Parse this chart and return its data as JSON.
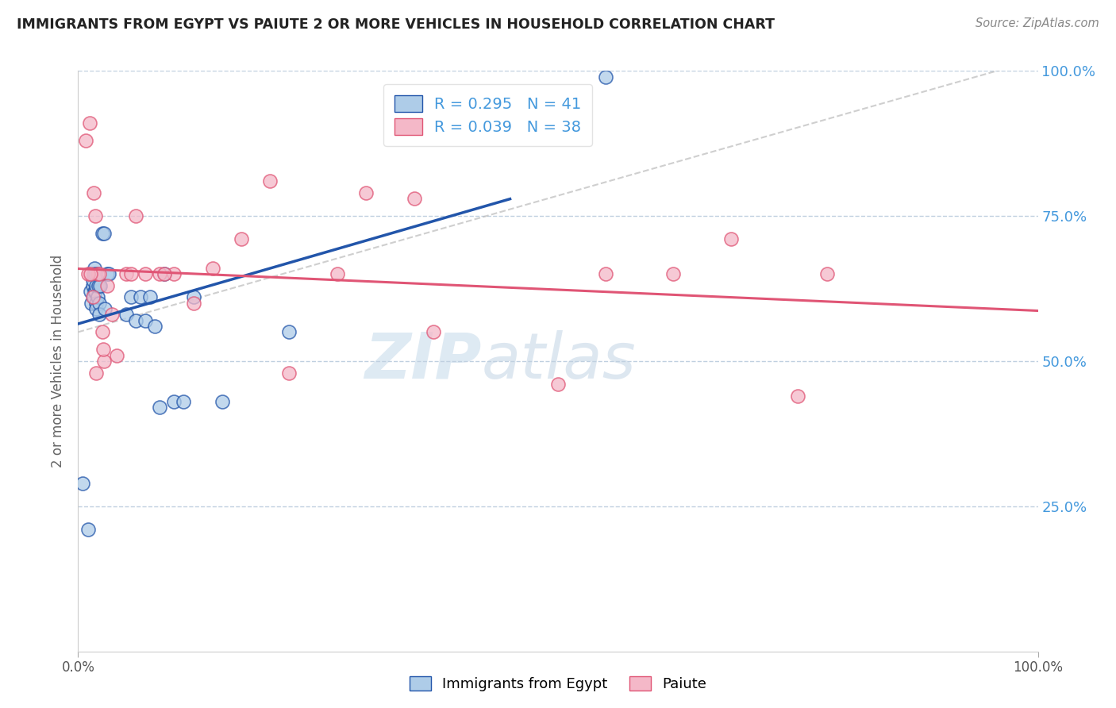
{
  "title": "IMMIGRANTS FROM EGYPT VS PAIUTE 2 OR MORE VEHICLES IN HOUSEHOLD CORRELATION CHART",
  "source": "Source: ZipAtlas.com",
  "ylabel": "2 or more Vehicles in Household",
  "xlim": [
    0.0,
    1.0
  ],
  "ylim": [
    0.0,
    1.0
  ],
  "blue_R": 0.295,
  "blue_N": 41,
  "pink_R": 0.039,
  "pink_N": 38,
  "blue_color": "#aecce8",
  "pink_color": "#f4b8c8",
  "blue_line_color": "#2255aa",
  "pink_line_color": "#e05575",
  "ref_line_color": "#bbbbbb",
  "legend_label_blue": "Immigrants from Egypt",
  "legend_label_pink": "Paiute",
  "title_color": "#222222",
  "source_color": "#888888",
  "watermark_zip": "ZIP",
  "watermark_atlas": "atlas",
  "background_color": "#ffffff",
  "grid_color": "#c0d0e0",
  "right_tick_color": "#4499dd",
  "blue_x": [
    0.005,
    0.01,
    0.013,
    0.014,
    0.015,
    0.015,
    0.016,
    0.016,
    0.017,
    0.017,
    0.018,
    0.018,
    0.019,
    0.019,
    0.019,
    0.02,
    0.02,
    0.021,
    0.022,
    0.022,
    0.023,
    0.025,
    0.027,
    0.028,
    0.03,
    0.032,
    0.05,
    0.055,
    0.06,
    0.065,
    0.07,
    0.075,
    0.08,
    0.085,
    0.09,
    0.1,
    0.11,
    0.12,
    0.15,
    0.22,
    0.55
  ],
  "blue_y": [
    0.29,
    0.21,
    0.62,
    0.6,
    0.63,
    0.64,
    0.65,
    0.61,
    0.66,
    0.62,
    0.65,
    0.62,
    0.63,
    0.6,
    0.59,
    0.61,
    0.65,
    0.63,
    0.6,
    0.58,
    0.63,
    0.72,
    0.72,
    0.59,
    0.65,
    0.65,
    0.58,
    0.61,
    0.57,
    0.61,
    0.57,
    0.61,
    0.56,
    0.42,
    0.65,
    0.43,
    0.43,
    0.61,
    0.43,
    0.55,
    0.99
  ],
  "pink_x": [
    0.008,
    0.012,
    0.016,
    0.018,
    0.02,
    0.022,
    0.025,
    0.027,
    0.03,
    0.035,
    0.04,
    0.05,
    0.055,
    0.06,
    0.07,
    0.085,
    0.1,
    0.12,
    0.14,
    0.17,
    0.2,
    0.22,
    0.27,
    0.3,
    0.35,
    0.37,
    0.5,
    0.55,
    0.62,
    0.68,
    0.75,
    0.78,
    0.01,
    0.013,
    0.015,
    0.019,
    0.026,
    0.09
  ],
  "pink_y": [
    0.88,
    0.91,
    0.79,
    0.75,
    0.65,
    0.65,
    0.55,
    0.5,
    0.63,
    0.58,
    0.51,
    0.65,
    0.65,
    0.75,
    0.65,
    0.65,
    0.65,
    0.6,
    0.66,
    0.71,
    0.81,
    0.48,
    0.65,
    0.79,
    0.78,
    0.55,
    0.46,
    0.65,
    0.65,
    0.71,
    0.44,
    0.65,
    0.65,
    0.65,
    0.61,
    0.48,
    0.52,
    0.65
  ]
}
